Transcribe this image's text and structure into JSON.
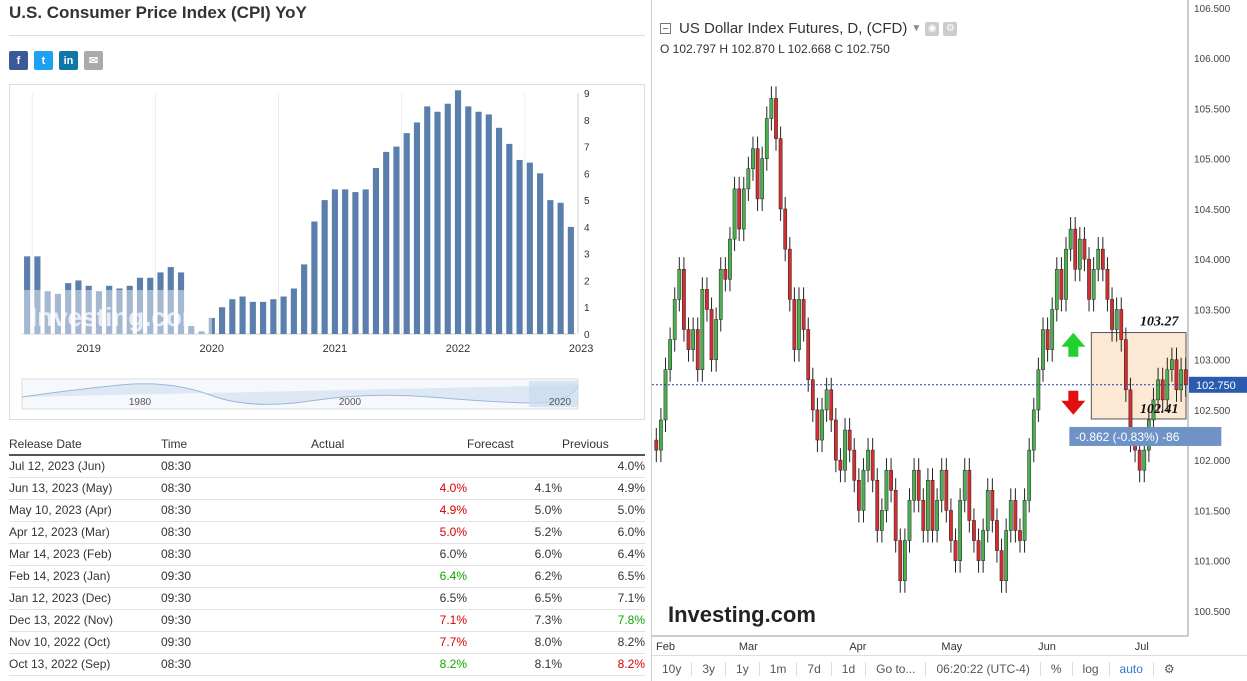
{
  "left": {
    "title": "U.S. Consumer Price Index (CPI) YoY",
    "share": {
      "fb": "f",
      "tw": "t",
      "li": "in",
      "em": "✉"
    },
    "watermark": "Investing.com",
    "table": {
      "headers": [
        "Release Date",
        "Time",
        "Actual",
        "Forecast",
        "Previous"
      ],
      "rows": [
        {
          "date": "Jul 12, 2023 (Jun)",
          "time": "08:30",
          "actual": "",
          "forecast": "",
          "previous": "4.0%",
          "actual_cls": "",
          "prev_cls": ""
        },
        {
          "date": "Jun 13, 2023 (May)",
          "time": "08:30",
          "actual": "4.0%",
          "forecast": "4.1%",
          "previous": "4.9%",
          "actual_cls": "red",
          "prev_cls": ""
        },
        {
          "date": "May 10, 2023 (Apr)",
          "time": "08:30",
          "actual": "4.9%",
          "forecast": "5.0%",
          "previous": "5.0%",
          "actual_cls": "red",
          "prev_cls": ""
        },
        {
          "date": "Apr 12, 2023 (Mar)",
          "time": "08:30",
          "actual": "5.0%",
          "forecast": "5.2%",
          "previous": "6.0%",
          "actual_cls": "red",
          "prev_cls": ""
        },
        {
          "date": "Mar 14, 2023 (Feb)",
          "time": "08:30",
          "actual": "6.0%",
          "forecast": "6.0%",
          "previous": "6.4%",
          "actual_cls": "",
          "prev_cls": ""
        },
        {
          "date": "Feb 14, 2023 (Jan)",
          "time": "09:30",
          "actual": "6.4%",
          "forecast": "6.2%",
          "previous": "6.5%",
          "actual_cls": "green",
          "prev_cls": ""
        },
        {
          "date": "Jan 12, 2023 (Dec)",
          "time": "09:30",
          "actual": "6.5%",
          "forecast": "6.5%",
          "previous": "7.1%",
          "actual_cls": "",
          "prev_cls": ""
        },
        {
          "date": "Dec 13, 2022 (Nov)",
          "time": "09:30",
          "actual": "7.1%",
          "forecast": "7.3%",
          "previous": "7.8%",
          "actual_cls": "red",
          "prev_cls": "green"
        },
        {
          "date": "Nov 10, 2022 (Oct)",
          "time": "09:30",
          "actual": "7.7%",
          "forecast": "8.0%",
          "previous": "8.2%",
          "actual_cls": "red",
          "prev_cls": ""
        },
        {
          "date": "Oct 13, 2022 (Sep)",
          "time": "08:30",
          "actual": "8.2%",
          "forecast": "8.1%",
          "previous": "8.2%",
          "actual_cls": "green",
          "prev_cls": "red"
        }
      ]
    }
  },
  "right": {
    "title": "US Dollar Index Futures, D, (CFD)",
    "ohlc": "O 102.797  H 102.870  L 102.668  C 102.750",
    "watermark": "Investing.com",
    "level_high": "103.27",
    "level_low": "102.41",
    "current_price": "102.750",
    "change_label": "-0.862 (-0.83%) -86",
    "toolbar": [
      "10y",
      "3y",
      "1y",
      "1m",
      "7d",
      "1d",
      "Go to...",
      "06:20:22 (UTC-4)",
      "%",
      "log",
      "auto"
    ]
  },
  "chart_data": [
    {
      "type": "bar",
      "title": "U.S. Consumer Price Index (CPI) YoY",
      "xlabel": "",
      "ylabel": "",
      "ylim": [
        0,
        9
      ],
      "yticks": [
        0,
        1,
        2,
        3,
        4,
        5,
        6,
        7,
        8,
        9
      ],
      "x_tick_labels": [
        "2019",
        "2020",
        "2021",
        "2022",
        "2023"
      ],
      "navigator_labels": [
        "1980",
        "2000",
        "2020"
      ],
      "bar_color": "#5b7fad",
      "categories": [
        "Dec 2018",
        "Jan 2019",
        "Feb 2019",
        "Mar 2019",
        "Apr 2019",
        "May 2019",
        "Jun 2019",
        "Jul 2019",
        "Aug 2019",
        "Sep 2019",
        "Oct 2019",
        "Nov 2019",
        "Dec 2019",
        "Jan 2020",
        "Feb 2020",
        "Mar 2020",
        "Apr 2020",
        "May 2020",
        "Jun 2020",
        "Jul 2020",
        "Aug 2020",
        "Sep 2020",
        "Oct 2020",
        "Nov 2020",
        "Dec 2020",
        "Jan 2021",
        "Feb 2021",
        "Mar 2021",
        "Apr 2021",
        "May 2021",
        "Jun 2021",
        "Jul 2021",
        "Aug 2021",
        "Sep 2021",
        "Oct 2021",
        "Nov 2021",
        "Dec 2021",
        "Jan 2022",
        "Feb 2022",
        "Mar 2022",
        "Apr 2022",
        "May 2022",
        "Jun 2022",
        "Jul 2022",
        "Aug 2022",
        "Sep 2022",
        "Oct 2022",
        "Nov 2022",
        "Dec 2022",
        "Jan 2023",
        "Feb 2023",
        "Mar 2023",
        "Apr 2023",
        "May 2023"
      ],
      "values": [
        2.9,
        2.9,
        1.6,
        1.5,
        1.9,
        2.0,
        1.8,
        1.6,
        1.8,
        1.7,
        1.8,
        2.1,
        2.1,
        2.3,
        2.5,
        2.3,
        0.3,
        0.1,
        0.6,
        1.0,
        1.3,
        1.4,
        1.2,
        1.2,
        1.3,
        1.4,
        1.7,
        2.6,
        4.2,
        5.0,
        5.4,
        5.4,
        5.3,
        5.4,
        6.2,
        6.8,
        7.0,
        7.5,
        7.9,
        8.5,
        8.3,
        8.6,
        9.1,
        8.5,
        8.3,
        8.2,
        7.7,
        7.1,
        6.5,
        6.4,
        6.0,
        5.0,
        4.9,
        4.0
      ]
    },
    {
      "type": "candlestick",
      "title": "US Dollar Index Futures, D, (CFD)",
      "ylim": [
        100.25,
        106.5
      ],
      "yticks": [
        100.5,
        101.0,
        101.5,
        102.0,
        102.5,
        103.0,
        103.5,
        104.0,
        104.5,
        105.0,
        105.5,
        106.0,
        106.5
      ],
      "x_tick_labels": [
        "Feb",
        "Mar",
        "Apr",
        "May",
        "Jun",
        "Jul"
      ],
      "up_color": "#4caf50",
      "down_color": "#d32f2f",
      "closes": [
        102.1,
        102.4,
        102.9,
        103.2,
        103.6,
        103.9,
        103.3,
        103.1,
        103.3,
        102.9,
        103.7,
        103.5,
        103.0,
        103.4,
        103.9,
        103.8,
        104.2,
        104.7,
        104.3,
        104.7,
        104.9,
        105.1,
        104.6,
        105.0,
        105.4,
        105.6,
        105.2,
        104.5,
        104.1,
        103.6,
        103.1,
        103.6,
        103.3,
        102.8,
        102.5,
        102.2,
        102.5,
        102.7,
        102.4,
        102.0,
        101.9,
        102.3,
        102.1,
        101.8,
        101.5,
        101.9,
        102.1,
        101.8,
        101.3,
        101.5,
        101.9,
        101.7,
        101.2,
        100.8,
        101.2,
        101.6,
        101.9,
        101.6,
        101.3,
        101.8,
        101.3,
        101.6,
        101.9,
        101.5,
        101.2,
        101.0,
        101.6,
        101.9,
        101.4,
        101.2,
        101.0,
        101.3,
        101.7,
        101.4,
        101.1,
        100.8,
        101.3,
        101.6,
        101.3,
        101.2,
        101.6,
        102.1,
        102.5,
        102.9,
        103.3,
        103.1,
        103.5,
        103.9,
        103.6,
        104.1,
        104.3,
        103.9,
        104.2,
        104.0,
        103.6,
        103.9,
        104.1,
        103.9,
        103.6,
        103.3,
        103.5,
        103.2,
        102.7,
        102.2,
        102.1,
        101.9,
        102.1,
        102.4,
        102.6,
        102.8,
        102.6,
        102.9,
        103.0,
        102.7,
        102.9,
        102.75
      ],
      "price_line": 102.75,
      "range_box": [
        102.41,
        103.27
      ]
    }
  ]
}
